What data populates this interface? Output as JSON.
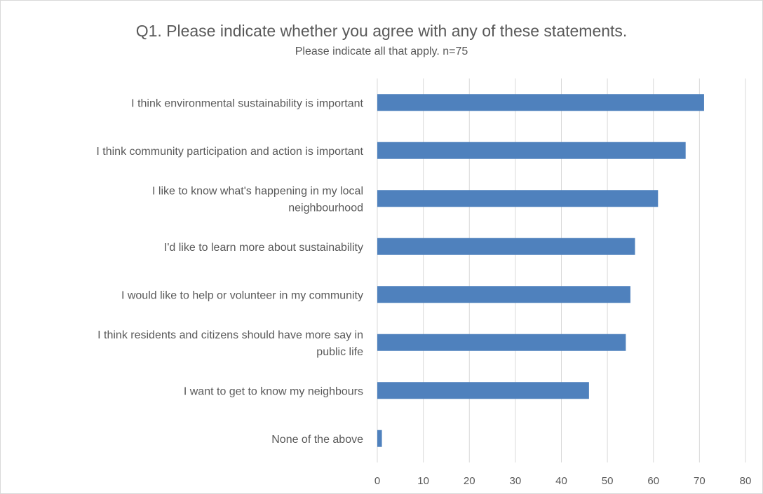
{
  "chart_data": {
    "type": "bar",
    "orientation": "horizontal",
    "title": "Q1. Please indicate whether you agree with any of these statements.",
    "subtitle": "Please indicate all that apply. n=75",
    "categories": [
      "I think environmental sustainability is important",
      "I think community participation and action is important",
      "I like to know what's happening in my local neighbourhood",
      "I'd like to learn more about sustainability",
      "I would like to help or volunteer in my community",
      "I think residents and citizens should have more say in public life",
      "I want to get to know my neighbours",
      "None of the above"
    ],
    "category_lines": [
      [
        "I think environmental sustainability is important"
      ],
      [
        "I think community participation and action is important"
      ],
      [
        "I like to know what's happening in my local",
        "neighbourhood"
      ],
      [
        "I'd like to learn more about sustainability"
      ],
      [
        "I would like to help or volunteer in my community"
      ],
      [
        "I think residents and citizens should have more say in",
        "public life"
      ],
      [
        "I want to get to know my neighbours"
      ],
      [
        "None of the above"
      ]
    ],
    "values": [
      71,
      67,
      61,
      56,
      55,
      54,
      46,
      1
    ],
    "xlim": [
      0,
      80
    ],
    "xticks": [
      0,
      10,
      20,
      30,
      40,
      50,
      60,
      70,
      80
    ],
    "xlabel": "",
    "ylabel": "",
    "grid": true,
    "legend": "none",
    "bar_color": "#4f81bd"
  }
}
